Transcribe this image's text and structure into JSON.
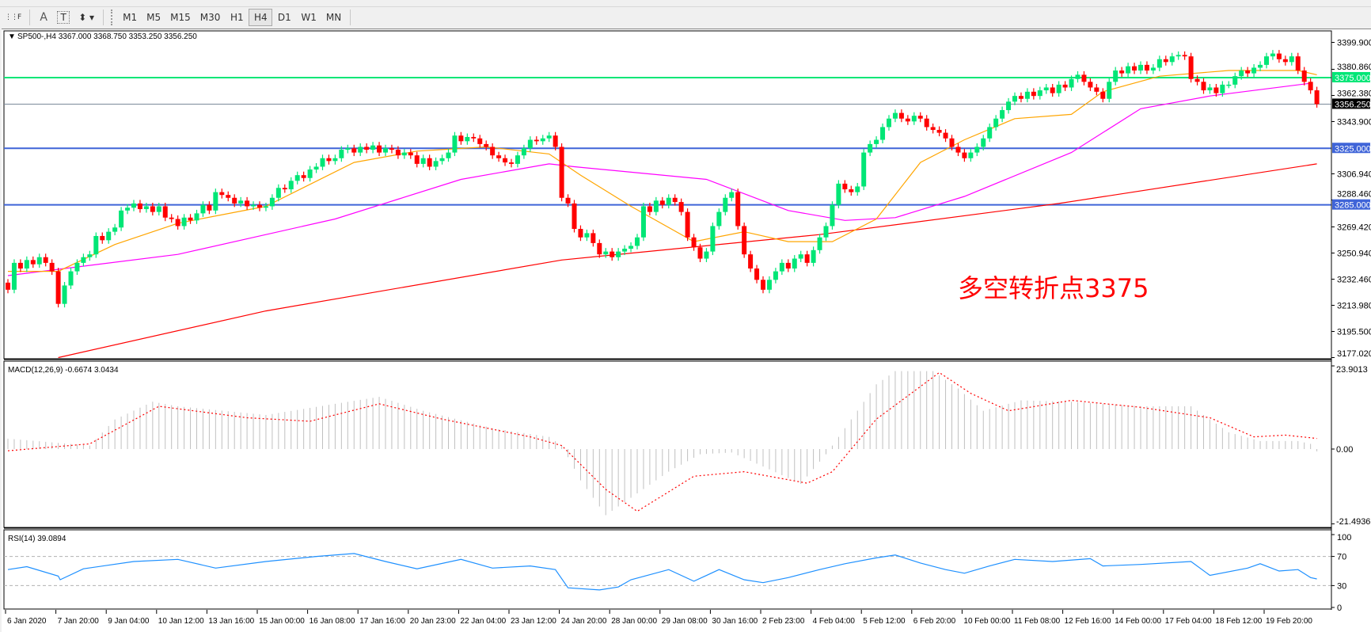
{
  "toolbar": {
    "tools": [
      {
        "name": "grid-f-icon",
        "label": "F"
      },
      {
        "name": "text-a-icon",
        "label": "A"
      },
      {
        "name": "text-label-icon",
        "label": "T"
      },
      {
        "name": "arrows-dropdown-icon",
        "label": "⬍ ▾"
      }
    ],
    "timeframes": [
      "M1",
      "M5",
      "M15",
      "M30",
      "H1",
      "H4",
      "D1",
      "W1",
      "MN"
    ],
    "active_timeframe": "H4"
  },
  "chart_data": [
    {
      "type": "candlestick",
      "title": "SP500-,H4  3367.000 3368.750 3353.250 3356.250",
      "colors": {
        "up": "#00e676",
        "down": "#ff0000",
        "ma_fast": "#ffa500",
        "ma_mid": "#ff00ff",
        "ma_slow": "#ff0000"
      },
      "ylim": [
        3177.02,
        3399.9
      ],
      "y_ticks": [
        "3399.900",
        "3380.860",
        "3362.380",
        "3343.900",
        "3306.940",
        "3288.460",
        "3269.420",
        "3250.940",
        "3232.460",
        "3213.980",
        "3195.500",
        "3177.020"
      ],
      "first_open": 3230,
      "close": [
        3225,
        3244,
        3240,
        3246,
        3243,
        3248,
        3244,
        3238,
        3215,
        3228,
        3238,
        3244,
        3248,
        3250,
        3263,
        3260,
        3266,
        3269,
        3281,
        3283,
        3286,
        3282,
        3284,
        3280,
        3284,
        3276,
        3275,
        3270,
        3276,
        3274,
        3279,
        3285,
        3281,
        3294,
        3292,
        3290,
        3286,
        3288,
        3284,
        3285,
        3283,
        3284,
        3290,
        3297,
        3296,
        3302,
        3306,
        3304,
        3310,
        3312,
        3318,
        3316,
        3318,
        3324,
        3325,
        3322,
        3326,
        3324,
        3327,
        3322,
        3325,
        3324,
        3320,
        3322,
        3320,
        3314,
        3318,
        3312,
        3316,
        3318,
        3322,
        3334,
        3330,
        3333,
        3332,
        3328,
        3326,
        3320,
        3318,
        3315,
        3314,
        3320,
        3325,
        3331,
        3330,
        3332,
        3334,
        3326,
        3290,
        3286,
        3268,
        3262,
        3265,
        3258,
        3250,
        3252,
        3248,
        3252,
        3254,
        3256,
        3262,
        3284,
        3280,
        3288,
        3285,
        3290,
        3287,
        3280,
        3262,
        3255,
        3247,
        3252,
        3270,
        3280,
        3290,
        3294,
        3270,
        3250,
        3240,
        3232,
        3225,
        3232,
        3238,
        3244,
        3240,
        3247,
        3250,
        3244,
        3253,
        3262,
        3270,
        3285,
        3300,
        3296,
        3294,
        3298,
        3322,
        3328,
        3331,
        3340,
        3346,
        3350,
        3346,
        3344,
        3348,
        3346,
        3340,
        3338,
        3336,
        3332,
        3326,
        3322,
        3318,
        3322,
        3326,
        3332,
        3340,
        3346,
        3352,
        3358,
        3362,
        3360,
        3365,
        3362,
        3366,
        3368,
        3364,
        3370,
        3368,
        3374,
        3377,
        3372,
        3368,
        3365,
        3360,
        3372,
        3380,
        3378,
        3383,
        3380,
        3384,
        3380,
        3382,
        3388,
        3386,
        3390,
        3391,
        3390,
        3374,
        3372,
        3366,
        3368,
        3364,
        3370,
        3370,
        3376,
        3380,
        3378,
        3382,
        3384,
        3390,
        3392,
        3388,
        3386,
        3390,
        3380,
        3372,
        3366,
        3356.25
      ],
      "ma_fast": [
        [
          0,
          3238
        ],
        [
          8,
          3238
        ],
        [
          17,
          3257
        ],
        [
          27,
          3272
        ],
        [
          41,
          3284
        ],
        [
          55,
          3315
        ],
        [
          65,
          3323
        ],
        [
          76,
          3326
        ],
        [
          86,
          3321
        ],
        [
          91,
          3306
        ],
        [
          99,
          3284
        ],
        [
          109,
          3259
        ],
        [
          117,
          3266
        ],
        [
          124,
          3259
        ],
        [
          131,
          3259
        ],
        [
          138,
          3275
        ],
        [
          145,
          3315
        ],
        [
          152,
          3331
        ],
        [
          160,
          3346
        ],
        [
          169,
          3349
        ],
        [
          174,
          3365
        ],
        [
          183,
          3376
        ],
        [
          194,
          3380
        ],
        [
          205,
          3380
        ],
        [
          208,
          3377
        ]
      ],
      "ma_mid": [
        [
          0,
          3235
        ],
        [
          27,
          3250
        ],
        [
          52,
          3275
        ],
        [
          62,
          3289
        ],
        [
          72,
          3303
        ],
        [
          86,
          3314
        ],
        [
          90,
          3312
        ],
        [
          111,
          3303
        ],
        [
          124,
          3281
        ],
        [
          133,
          3274
        ],
        [
          141,
          3276
        ],
        [
          152,
          3291
        ],
        [
          169,
          3322
        ],
        [
          180,
          3353
        ],
        [
          191,
          3362
        ],
        [
          207,
          3371
        ]
      ],
      "ma_slow": [
        [
          8,
          3177
        ],
        [
          41,
          3210
        ],
        [
          88,
          3246
        ],
        [
          129,
          3264
        ],
        [
          167,
          3286
        ],
        [
          208,
          3314
        ]
      ],
      "hlines": [
        {
          "price": 3375.0,
          "label": "3375.000",
          "color": "#00e676"
        },
        {
          "price": 3325.0,
          "label": "3325.000",
          "color": "#3f64d8"
        },
        {
          "price": 3285.0,
          "label": "3285.000",
          "color": "#3f64d8"
        }
      ],
      "bid_line": {
        "price": 3356.25,
        "label": "3356.250",
        "color": "#7a8a99"
      },
      "annotation": {
        "text": "多空转折点3375",
        "color": "#ff0000"
      }
    },
    {
      "type": "bar+line",
      "title": "MACD(12,26,9) -0.6674 3.0434",
      "ylim": [
        -21.4936,
        23.9013
      ],
      "y_ticks": [
        "23.9013",
        "0.00",
        "-21.4936"
      ],
      "histogram": [
        [
          0,
          3
        ],
        [
          13,
          1
        ],
        [
          17,
          8.5
        ],
        [
          23,
          13.6
        ],
        [
          27,
          12.3
        ],
        [
          41,
          9.8
        ],
        [
          52,
          13
        ],
        [
          59,
          15
        ],
        [
          66,
          11
        ],
        [
          77,
          6
        ],
        [
          86,
          3.5
        ],
        [
          88,
          1
        ],
        [
          91,
          -9
        ],
        [
          95,
          -19
        ],
        [
          99,
          -14
        ],
        [
          105,
          -6.5
        ],
        [
          110,
          -1.5
        ],
        [
          115,
          -1
        ],
        [
          120,
          -5
        ],
        [
          126,
          -10
        ],
        [
          130,
          -1.5
        ],
        [
          133,
          6
        ],
        [
          138,
          18.6
        ],
        [
          141,
          22.4
        ],
        [
          147,
          22.4
        ],
        [
          151,
          17.4
        ],
        [
          155,
          11
        ],
        [
          161,
          14
        ],
        [
          169,
          13.6
        ],
        [
          180,
          12.3
        ],
        [
          188,
          12.3
        ],
        [
          194,
          4.8
        ],
        [
          199,
          2.3
        ],
        [
          205,
          2.3
        ],
        [
          207,
          1.5
        ],
        [
          208,
          -0.6674
        ]
      ],
      "signal": [
        [
          0,
          -0.5
        ],
        [
          13,
          1.5
        ],
        [
          24,
          12.3
        ],
        [
          38,
          9
        ],
        [
          48,
          8
        ],
        [
          59,
          13
        ],
        [
          69,
          8.6
        ],
        [
          83,
          3.5
        ],
        [
          88,
          1
        ],
        [
          95,
          -11.6
        ],
        [
          100,
          -17.9
        ],
        [
          109,
          -7.8
        ],
        [
          117,
          -6.5
        ],
        [
          127,
          -9.8
        ],
        [
          131,
          -6.5
        ],
        [
          138,
          8.6
        ],
        [
          148,
          22
        ],
        [
          153,
          16
        ],
        [
          159,
          11
        ],
        [
          169,
          14
        ],
        [
          180,
          12
        ],
        [
          191,
          9
        ],
        [
          198,
          3.5
        ],
        [
          203,
          4
        ],
        [
          208,
          3.0434
        ]
      ],
      "colors": {
        "histogram": "#c0c0c0",
        "signal": "#ff0000"
      }
    },
    {
      "type": "line",
      "title": "RSI(14) 39.0894",
      "ylim": [
        0,
        100
      ],
      "y_ticks": [
        "100",
        "70",
        "30",
        "0"
      ],
      "levels": [
        70,
        30
      ],
      "values": [
        [
          0,
          52
        ],
        [
          3,
          56
        ],
        [
          8,
          43
        ],
        [
          8.3,
          38
        ],
        [
          12,
          53
        ],
        [
          20,
          63
        ],
        [
          27,
          66
        ],
        [
          33,
          54
        ],
        [
          41,
          63
        ],
        [
          49,
          70
        ],
        [
          55,
          74
        ],
        [
          60,
          63
        ],
        [
          65,
          53
        ],
        [
          72,
          66
        ],
        [
          77,
          54
        ],
        [
          83,
          57
        ],
        [
          87,
          52
        ],
        [
          89,
          27
        ],
        [
          94,
          24
        ],
        [
          97,
          28
        ],
        [
          99,
          38
        ],
        [
          105,
          52
        ],
        [
          109,
          36
        ],
        [
          113,
          52
        ],
        [
          117,
          38
        ],
        [
          120,
          34
        ],
        [
          124,
          41
        ],
        [
          129,
          52
        ],
        [
          133,
          60
        ],
        [
          138,
          68
        ],
        [
          141,
          72
        ],
        [
          145,
          61
        ],
        [
          149,
          52
        ],
        [
          152,
          47
        ],
        [
          156,
          57
        ],
        [
          160,
          66
        ],
        [
          166,
          63
        ],
        [
          172,
          67
        ],
        [
          174,
          57
        ],
        [
          180,
          59
        ],
        [
          188,
          63
        ],
        [
          191,
          44
        ],
        [
          197,
          54
        ],
        [
          199,
          60
        ],
        [
          202,
          50
        ],
        [
          205,
          52
        ],
        [
          207,
          41
        ],
        [
          208,
          39.0894
        ]
      ],
      "color": "#1e90ff"
    }
  ],
  "x_ticks": [
    {
      "bar": 0,
      "label": "6 Jan 2020"
    },
    {
      "bar": 8,
      "label": "7 Jan 20:00"
    },
    {
      "bar": 16,
      "label": "9 Jan 04:00"
    },
    {
      "bar": 24,
      "label": "10 Jan 12:00"
    },
    {
      "bar": 32,
      "label": "13 Jan 16:00"
    },
    {
      "bar": 40,
      "label": "15 Jan 00:00"
    },
    {
      "bar": 48,
      "label": "16 Jan 08:00"
    },
    {
      "bar": 56,
      "label": "17 Jan 16:00"
    },
    {
      "bar": 64,
      "label": "20 Jan 23:00"
    },
    {
      "bar": 72,
      "label": "22 Jan 04:00"
    },
    {
      "bar": 80,
      "label": "23 Jan 12:00"
    },
    {
      "bar": 88,
      "label": "24 Jan 20:00"
    },
    {
      "bar": 96,
      "label": "28 Jan 00:00"
    },
    {
      "bar": 104,
      "label": "29 Jan 08:00"
    },
    {
      "bar": 112,
      "label": "30 Jan 16:00"
    },
    {
      "bar": 120,
      "label": "2 Feb 23:00"
    },
    {
      "bar": 128,
      "label": "4 Feb 04:00"
    },
    {
      "bar": 136,
      "label": "5 Feb 12:00"
    },
    {
      "bar": 144,
      "label": "6 Feb 20:00"
    },
    {
      "bar": 152,
      "label": "10 Feb 00:00"
    },
    {
      "bar": 160,
      "label": "11 Feb 08:00"
    },
    {
      "bar": 168,
      "label": "12 Feb 16:00"
    },
    {
      "bar": 176,
      "label": "14 Feb 00:00"
    },
    {
      "bar": 184,
      "label": "17 Feb 04:00"
    },
    {
      "bar": 192,
      "label": "18 Feb 12:00"
    },
    {
      "bar": 200,
      "label": "19 Feb 20:00"
    }
  ]
}
